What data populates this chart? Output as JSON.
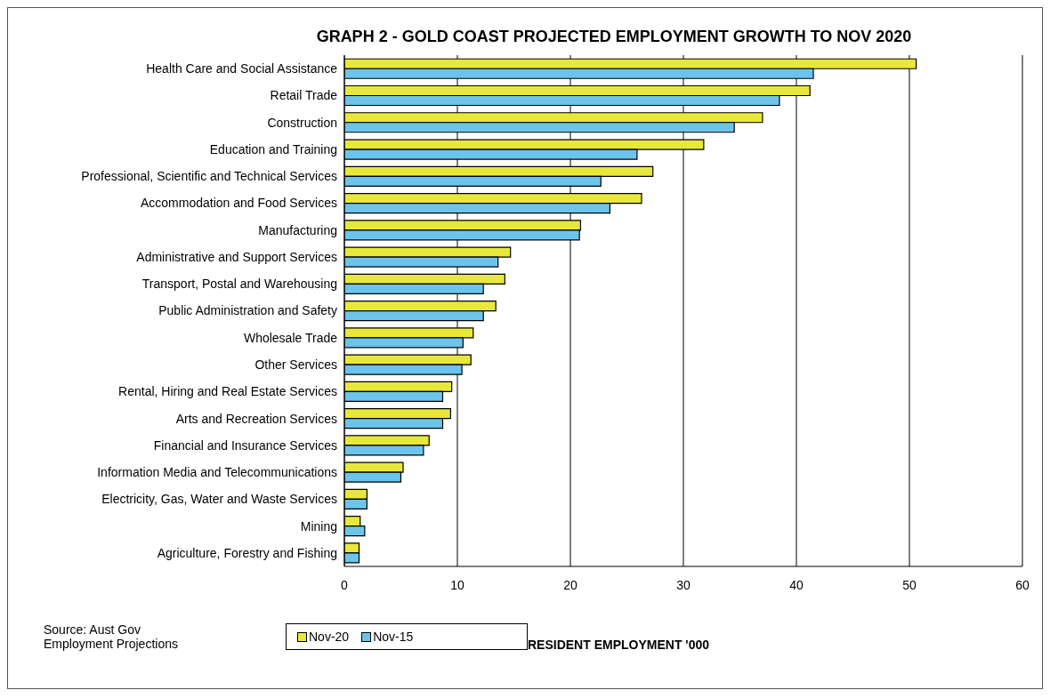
{
  "chart_data": {
    "type": "bar",
    "orientation": "horizontal",
    "title": "GRAPH 2 - GOLD COAST PROJECTED EMPLOYMENT GROWTH TO  NOV 2020",
    "xlabel": "RESIDENT EMPLOYMENT '000",
    "categories": [
      "Health Care and Social Assistance",
      "Retail Trade",
      "Construction",
      "Education and Training",
      "Professional, Scientific and Technical Services",
      "Accommodation and Food Services",
      "Manufacturing",
      "Administrative and Support Services",
      "Transport, Postal and Warehousing",
      "Public Administration and Safety",
      "Wholesale Trade",
      "Other Services",
      "Rental, Hiring and Real Estate Services",
      "Arts and Recreation Services",
      "Financial and Insurance Services",
      "Information Media and Telecommunications",
      "Electricity, Gas, Water and Waste Services",
      "Mining",
      "Agriculture, Forestry and Fishing"
    ],
    "series": [
      {
        "name": "Nov-20",
        "color": "#e8e83a",
        "values": [
          50.6,
          41.2,
          37.0,
          31.8,
          27.3,
          26.3,
          20.9,
          14.7,
          14.2,
          13.4,
          11.4,
          11.2,
          9.5,
          9.4,
          7.5,
          5.2,
          2.0,
          1.4,
          1.3
        ]
      },
      {
        "name": "Nov-15",
        "color": "#6cc4ec",
        "values": [
          41.5,
          38.5,
          34.5,
          25.9,
          22.7,
          23.5,
          20.8,
          13.6,
          12.3,
          12.3,
          10.5,
          10.4,
          8.7,
          8.7,
          7.0,
          5.0,
          2.0,
          1.8,
          1.3
        ]
      }
    ],
    "xlim": [
      0,
      60
    ],
    "xticks": [
      0,
      10,
      20,
      30,
      40,
      50,
      60
    ],
    "grid": "x",
    "legend": "bottom",
    "annotations": [
      "Source:  Aust Gov\nEmployment Projections"
    ]
  }
}
